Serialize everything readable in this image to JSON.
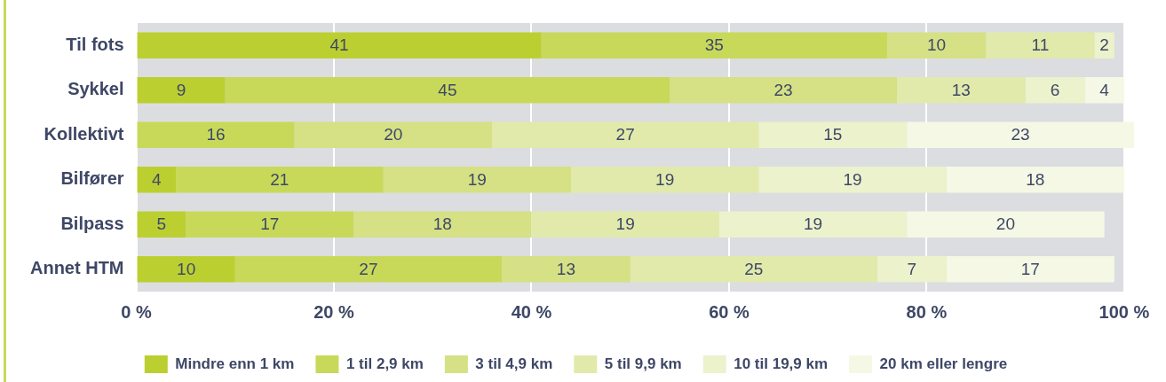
{
  "chart_data": {
    "type": "bar",
    "orientation": "horizontal",
    "stacked": true,
    "data_labels": true,
    "grid": "x",
    "legend": "bottom",
    "categories": [
      "Til fots",
      "Sykkel",
      "Kollektivt",
      "Bilfører",
      "Bilpass",
      "Annet HTM"
    ],
    "xlim": [
      0,
      101
    ],
    "xticks": [
      {
        "value": 0,
        "label": "0 %"
      },
      {
        "value": 20,
        "label": "20 %"
      },
      {
        "value": 40,
        "label": "40 %"
      },
      {
        "value": 60,
        "label": "60 %"
      },
      {
        "value": 80,
        "label": "80 %"
      },
      {
        "value": 100,
        "label": "100 %"
      }
    ],
    "series": [
      {
        "name": "Mindre enn 1 km",
        "color": "#bccf31",
        "values": [
          41,
          9,
          null,
          4,
          5,
          10
        ]
      },
      {
        "name": "1 til 2,9 km",
        "color": "#c8d95a",
        "values": [
          35,
          45,
          16,
          21,
          17,
          27
        ]
      },
      {
        "name": "3 til 4,9 km",
        "color": "#d5e184",
        "values": [
          10,
          23,
          20,
          19,
          18,
          13
        ]
      },
      {
        "name": "5 til 9,9 km",
        "color": "#e1eaab",
        "values": [
          11,
          13,
          27,
          19,
          19,
          25
        ]
      },
      {
        "name": "10 til 19,9 km",
        "color": "#ecf2cb",
        "values": [
          2,
          6,
          15,
          19,
          19,
          7
        ]
      },
      {
        "name": "20 km eller lengre",
        "color": "#f5f8e5",
        "values": [
          null,
          4,
          23,
          18,
          20,
          17
        ]
      }
    ]
  }
}
